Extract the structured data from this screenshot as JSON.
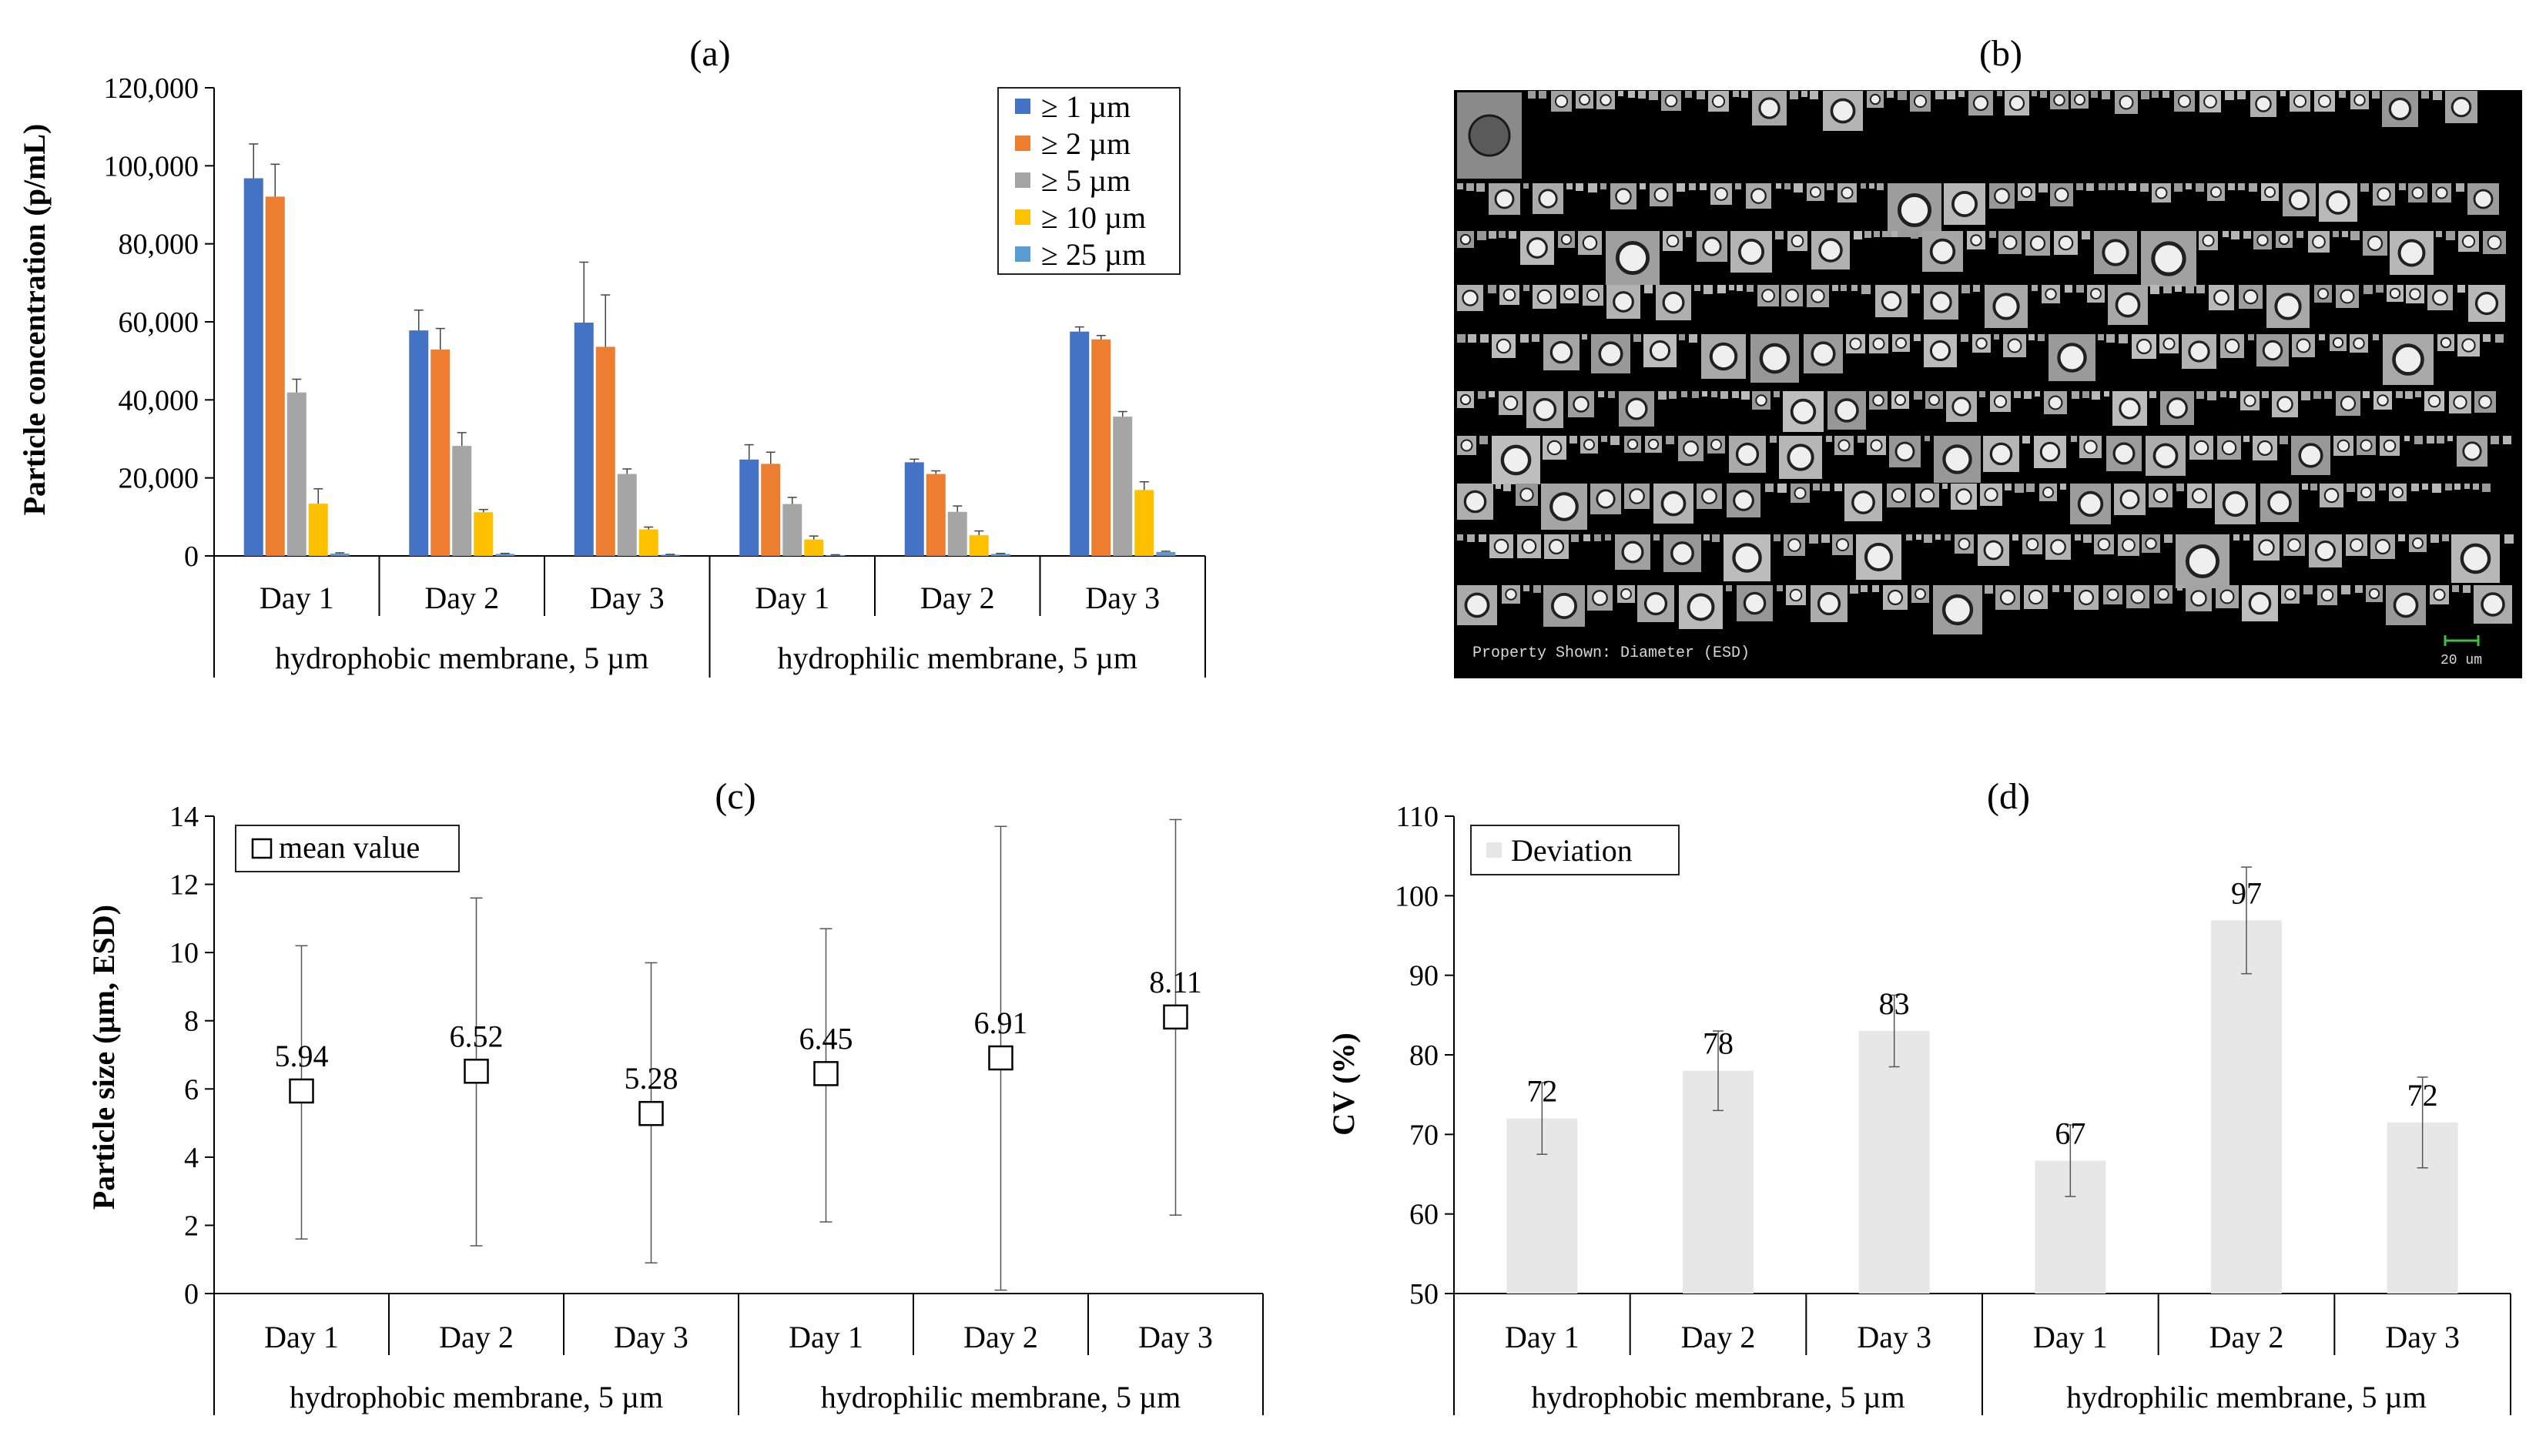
{
  "chart_data": [
    {
      "panel": "(a)",
      "type": "bar",
      "title": "(a)",
      "ylabel": "Particle concentration (p/mL)",
      "ylim": [
        0,
        120000
      ],
      "yticks": [
        "0",
        "20,000",
        "40,000",
        "60,000",
        "80,000",
        "100,000",
        "120,000"
      ],
      "ytick_values": [
        0,
        20000,
        40000,
        60000,
        80000,
        100000,
        120000
      ],
      "categories": [
        "Day 1",
        "Day 2",
        "Day 3",
        "Day 1",
        "Day 2",
        "Day 3"
      ],
      "groups": [
        "hydrophobic membrane, 5 µm",
        "hydrophilic membrane, 5 µm"
      ],
      "legend_position": "top-right",
      "series": [
        {
          "name": "≥ 1 µm",
          "color": "#4472c4",
          "values": [
            96800,
            57800,
            59800,
            24700,
            24000,
            57500
          ],
          "errors": [
            8800,
            5200,
            15500,
            3800,
            800,
            1200
          ]
        },
        {
          "name": "≥ 2 µm",
          "color": "#ed7d31",
          "values": [
            92100,
            52900,
            53600,
            23600,
            21000,
            55500
          ],
          "errors": [
            8300,
            5400,
            13300,
            3000,
            800,
            1000
          ]
        },
        {
          "name": "≥ 5 µm",
          "color": "#a5a5a5",
          "values": [
            41900,
            28200,
            21000,
            13300,
            11300,
            35700
          ],
          "errors": [
            3400,
            3400,
            1300,
            1700,
            1500,
            1300
          ]
        },
        {
          "name": "≥ 10 µm",
          "color": "#ffc000",
          "values": [
            13400,
            11200,
            6800,
            4200,
            5300,
            16900
          ],
          "errors": [
            3800,
            700,
            600,
            900,
            1100,
            2100
          ]
        },
        {
          "name": "≥ 25 µm",
          "color": "#5b9bd5",
          "values": [
            600,
            500,
            300,
            200,
            500,
            1000
          ],
          "errors": [
            200,
            150,
            100,
            100,
            150,
            200
          ]
        }
      ]
    },
    {
      "panel": "(c)",
      "type": "scatter",
      "title": "(c)",
      "ylabel": "Particle size (µm, ESD)",
      "ylim": [
        0,
        14
      ],
      "yticks": [
        "0",
        "2",
        "4",
        "6",
        "8",
        "10",
        "12",
        "14"
      ],
      "ytick_values": [
        0,
        2,
        4,
        6,
        8,
        10,
        12,
        14
      ],
      "categories": [
        "Day 1",
        "Day 2",
        "Day 3",
        "Day 1",
        "Day 2",
        "Day 3"
      ],
      "groups": [
        "hydrophobic membrane, 5 µm",
        "hydrophilic membrane, 5 µm"
      ],
      "legend": "mean value",
      "legend_position": "top-left",
      "values": [
        5.94,
        6.52,
        5.28,
        6.45,
        6.91,
        8.11
      ],
      "labels": [
        "5.94",
        "6.52",
        "5.28",
        "6.45",
        "6.91",
        "8.11"
      ],
      "err_low": [
        1.6,
        1.4,
        0.9,
        2.1,
        0.1,
        2.3
      ],
      "err_high": [
        10.2,
        11.6,
        9.7,
        10.7,
        13.7,
        13.9
      ]
    },
    {
      "panel": "(d)",
      "type": "bar",
      "title": "(d)",
      "ylabel": "CV (%)",
      "ylim": [
        50,
        110
      ],
      "yticks": [
        "50",
        "60",
        "70",
        "80",
        "90",
        "100",
        "110"
      ],
      "ytick_values": [
        50,
        60,
        70,
        80,
        90,
        100,
        110
      ],
      "categories": [
        "Day 1",
        "Day 2",
        "Day 3",
        "Day 1",
        "Day 2",
        "Day 3"
      ],
      "groups": [
        "hydrophobic membrane, 5 µm",
        "hydrophilic membrane, 5 µm"
      ],
      "legend": "Deviation",
      "legend_position": "top-left",
      "color": "#e7e7e7",
      "values": [
        72,
        78,
        83,
        66.7,
        96.9,
        71.5
      ],
      "labels": [
        "72",
        "78",
        "83",
        "67",
        "97",
        "72"
      ],
      "errors": [
        4.5,
        5,
        4.5,
        4.5,
        6.7,
        5.7
      ]
    }
  ],
  "image_b": {
    "title": "(b)",
    "caption": "Property Shown:  Diameter (ESD)",
    "scale_label": "20 um"
  }
}
